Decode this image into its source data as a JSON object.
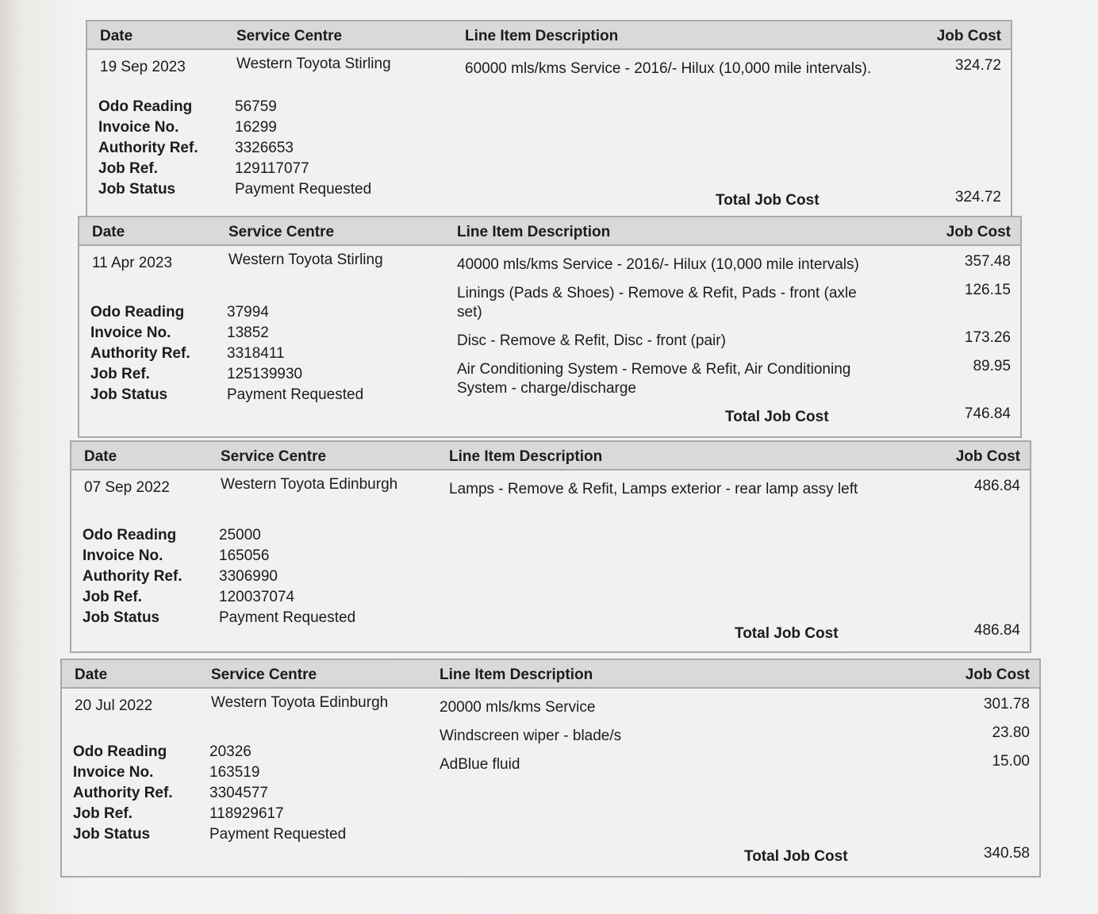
{
  "headers": {
    "date": "Date",
    "centre": "Service Centre",
    "desc": "Line Item Description",
    "cost": "Job Cost",
    "total": "Total Job Cost"
  },
  "labels": {
    "odo": "Odo Reading",
    "invoice": "Invoice No.",
    "authority": "Authority Ref.",
    "job_ref": "Job Ref.",
    "status": "Job Status"
  },
  "jobs": [
    {
      "date": "19 Sep 2023",
      "centre": "Western Toyota Stirling",
      "odo": "56759",
      "invoice": "16299",
      "authority": "3326653",
      "job_ref": "129117077",
      "status": "Payment Requested",
      "items": [
        {
          "desc": "60000 mls/kms Service - 2016/-  Hilux (10,000 mile intervals).",
          "cost": "324.72"
        }
      ],
      "total": "324.72"
    },
    {
      "date": "11 Apr 2023",
      "centre": "Western Toyota Stirling",
      "odo": "37994",
      "invoice": "13852",
      "authority": "3318411",
      "job_ref": "125139930",
      "status": "Payment Requested",
      "items": [
        {
          "desc": "40000 mls/kms Service - 2016/-  Hilux (10,000 mile intervals)",
          "cost": "357.48"
        },
        {
          "desc": "Linings (Pads & Shoes) - Remove & Refit, Pads - front (axle set)",
          "cost": "126.15"
        },
        {
          "desc": "Disc - Remove & Refit, Disc - front (pair)",
          "cost": "173.26"
        },
        {
          "desc": "Air Conditioning System - Remove & Refit, Air Conditioning System - charge/discharge",
          "cost": "89.95"
        }
      ],
      "total": "746.84"
    },
    {
      "date": "07 Sep 2022",
      "centre": "Western Toyota Edinburgh",
      "odo": "25000",
      "invoice": "165056",
      "authority": "3306990",
      "job_ref": "120037074",
      "status": "Payment Requested",
      "items": [
        {
          "desc": "Lamps - Remove & Refit, Lamps exterior - rear lamp assy left",
          "cost": "486.84"
        }
      ],
      "total": "486.84"
    },
    {
      "date": "20 Jul 2022",
      "centre": "Western Toyota Edinburgh",
      "odo": "20326",
      "invoice": "163519",
      "authority": "3304577",
      "job_ref": "118929617",
      "status": "Payment Requested",
      "items": [
        {
          "desc": "20000 mls/kms Service",
          "cost": "301.78"
        },
        {
          "desc": "Windscreen wiper - blade/s",
          "cost": "23.80"
        },
        {
          "desc": "AdBlue fluid",
          "cost": "15.00"
        }
      ],
      "total": "340.58"
    }
  ]
}
